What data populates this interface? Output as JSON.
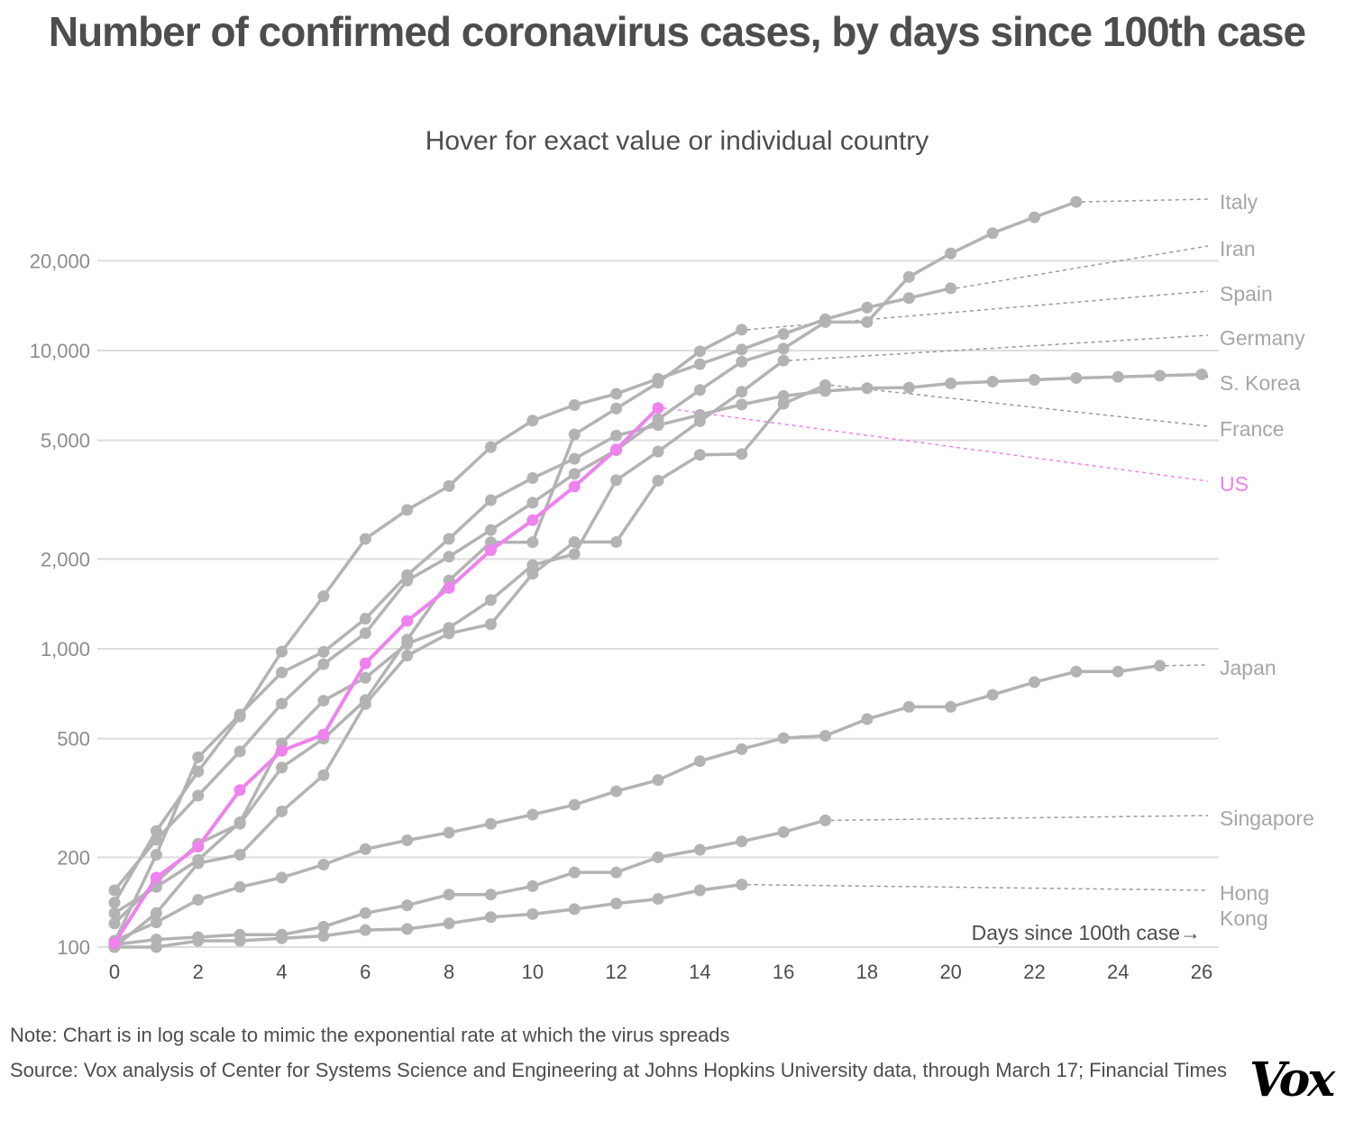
{
  "title": "Number of confirmed coronavirus cases, by days since 100th case",
  "subtitle": "Hover for exact value or individual country",
  "note": "Note: Chart is in log scale to mimic the exponential rate at which the virus spreads",
  "source": "Source: Vox analysis of Center for Systems Science and Engineering at Johns Hopkins University data, through March 17; Financial Times",
  "logo": "Vox",
  "colors": {
    "default_line": "#b3b3b3",
    "highlight": "#ee82ee",
    "grid": "#dddddd",
    "text": "#4d4d4d",
    "label": "#a6a6a6"
  },
  "chart_data": {
    "type": "line",
    "title": "Number of confirmed coronavirus cases, by days since 100th case",
    "xlabel": "Days since 100th case→",
    "ylabel": "",
    "yscale": "log",
    "xlim": [
      0,
      26
    ],
    "ylim": [
      100,
      35000
    ],
    "grid": true,
    "x_ticks": [
      0,
      2,
      4,
      6,
      8,
      10,
      12,
      14,
      16,
      18,
      20,
      22,
      24,
      26
    ],
    "y_ticks": [
      100,
      200,
      500,
      1000,
      2000,
      5000,
      10000,
      20000
    ],
    "y_tick_labels": [
      "100",
      "200",
      "500",
      "1,000",
      "2,000",
      "5,000",
      "10,000",
      "20,000"
    ],
    "legend": "direct labels at right",
    "series": [
      {
        "name": "Italy",
        "highlight": false,
        "values": [
          155,
          229,
          322,
          453,
          655,
          888,
          1128,
          1694,
          2036,
          2502,
          3089,
          3858,
          4636,
          5883,
          7375,
          9172,
          10149,
          12462,
          12462,
          17660,
          21157,
          24747,
          27980,
          31506
        ]
      },
      {
        "name": "Iran",
        "highlight": false,
        "values": [
          141,
          245,
          388,
          593,
          978,
          1501,
          2336,
          2922,
          3513,
          4747,
          5823,
          6566,
          7161,
          8042,
          9000,
          10075,
          11364,
          12729,
          13938,
          14991,
          16169
        ]
      },
      {
        "name": "Spain",
        "highlight": false,
        "values": [
          120,
          165,
          222,
          259,
          400,
          500,
          673,
          1073,
          1695,
          2277,
          2277,
          5232,
          6391,
          7798,
          9942,
          11748
        ]
      },
      {
        "name": "Germany",
        "highlight": false,
        "values": [
          130,
          159,
          196,
          262,
          482,
          670,
          799,
          1040,
          1176,
          1457,
          1908,
          2078,
          3675,
          4585,
          5795,
          7272,
          9257
        ]
      },
      {
        "name": "S. Korea",
        "highlight": false,
        "values": [
          104,
          204,
          433,
          602,
          833,
          977,
          1261,
          1766,
          2337,
          3150,
          3736,
          4335,
          5186,
          5621,
          6088,
          6593,
          7041,
          7314,
          7478,
          7513,
          7755,
          7869,
          7979,
          8086,
          8162,
          8236,
          8320
        ]
      },
      {
        "name": "France",
        "highlight": false,
        "values": [
          100,
          130,
          191,
          204,
          285,
          377,
          653,
          949,
          1126,
          1209,
          1784,
          2281,
          2281,
          3661,
          4469,
          4499,
          6633,
          7652
        ]
      },
      {
        "name": "US",
        "highlight": true,
        "values": [
          103,
          171,
          217,
          336,
          455,
          516,
          894,
          1240,
          1600,
          2140,
          2700,
          3500,
          4660,
          6420
        ]
      },
      {
        "name": "Japan",
        "highlight": false,
        "values": [
          105,
          121,
          144,
          159,
          171,
          189,
          213,
          228,
          242,
          259,
          278,
          300,
          333,
          363,
          420,
          461,
          502,
          511,
          581,
          639,
          639,
          701,
          773,
          839,
          839,
          878
        ]
      },
      {
        "name": "Singapore",
        "highlight": false,
        "values": [
          102,
          106,
          108,
          110,
          110,
          117,
          130,
          138,
          150,
          150,
          160,
          178,
          178,
          200,
          212,
          226,
          243,
          266
        ]
      },
      {
        "name": "Hong Kong",
        "highlight": false,
        "values": [
          100,
          100,
          105,
          105,
          107,
          109,
          114,
          115,
          120,
          126,
          129,
          134,
          140,
          145,
          155,
          162
        ]
      }
    ],
    "labels": [
      {
        "series": "Italy",
        "lines": [
          "Italy"
        ],
        "label_value": 31506
      },
      {
        "series": "Iran",
        "lines": [
          "Iran"
        ],
        "label_value": 22500
      },
      {
        "series": "Spain",
        "lines": [
          "Spain"
        ],
        "label_value": 15700
      },
      {
        "series": "Germany",
        "lines": [
          "Germany"
        ],
        "label_value": 11100
      },
      {
        "series": "S. Korea",
        "lines": [
          "S. Korea"
        ],
        "label_value": 7900
      },
      {
        "series": "France",
        "lines": [
          "France"
        ],
        "label_value": 5400
      },
      {
        "series": "US",
        "lines": [
          "US"
        ],
        "label_value": 3560
      },
      {
        "series": "Japan",
        "lines": [
          "Japan"
        ],
        "label_value": 878
      },
      {
        "series": "Singapore",
        "lines": [
          "Singapore"
        ],
        "label_value": 275
      },
      {
        "series": "Hong Kong",
        "lines": [
          "Hong",
          "Kong"
        ],
        "label_value": 155
      }
    ]
  }
}
